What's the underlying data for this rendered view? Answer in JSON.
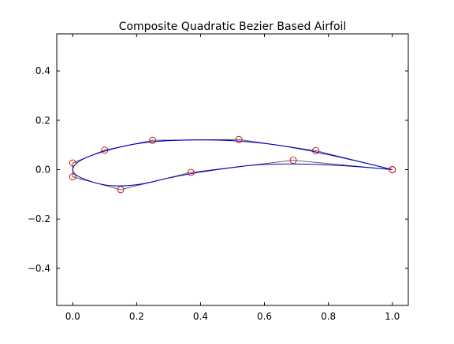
{
  "chart_data": {
    "type": "line",
    "title": "Composite Quadratic Bezier Based Airfoil",
    "xlabel": "",
    "ylabel": "",
    "xlim": [
      -0.05,
      1.05
    ],
    "ylim": [
      -0.55,
      0.55
    ],
    "xticks": [
      0.0,
      0.2,
      0.4,
      0.6,
      0.8,
      1.0
    ],
    "xtick_labels": [
      "0.0",
      "0.2",
      "0.4",
      "0.6",
      "0.8",
      "1.0"
    ],
    "yticks": [
      -0.4,
      -0.2,
      0.0,
      0.2,
      0.4
    ],
    "ytick_labels": [
      "−0.4",
      "−0.2",
      "0.0",
      "0.2",
      "0.4"
    ],
    "grid": false,
    "series": [
      {
        "style": "control-polygon",
        "color": "#4d4d4d",
        "x": [
          1.0,
          0.76,
          0.52,
          0.25,
          0.1,
          0.0,
          0.0,
          0.15,
          0.37,
          0.69,
          1.0
        ],
        "y": [
          0.0,
          0.077,
          0.122,
          0.119,
          0.079,
          0.027,
          -0.029,
          -0.081,
          -0.011,
          0.038,
          0.0
        ]
      },
      {
        "style": "curve",
        "color": "#0000cc",
        "x": [
          1.0,
          0.76,
          0.52,
          0.25,
          0.1,
          0.0,
          0.0,
          0.15,
          0.37,
          0.69,
          1.0
        ]
      },
      {
        "style": "markers",
        "marker": "open-circle",
        "color": "#cc0000",
        "x": [
          1.0,
          0.76,
          0.52,
          0.25,
          0.1,
          0.0,
          0.0,
          0.15,
          0.37,
          0.69,
          1.0
        ],
        "y": [
          0.0,
          0.077,
          0.122,
          0.119,
          0.079,
          0.027,
          -0.029,
          -0.081,
          -0.011,
          0.038,
          0.0
        ]
      }
    ]
  }
}
